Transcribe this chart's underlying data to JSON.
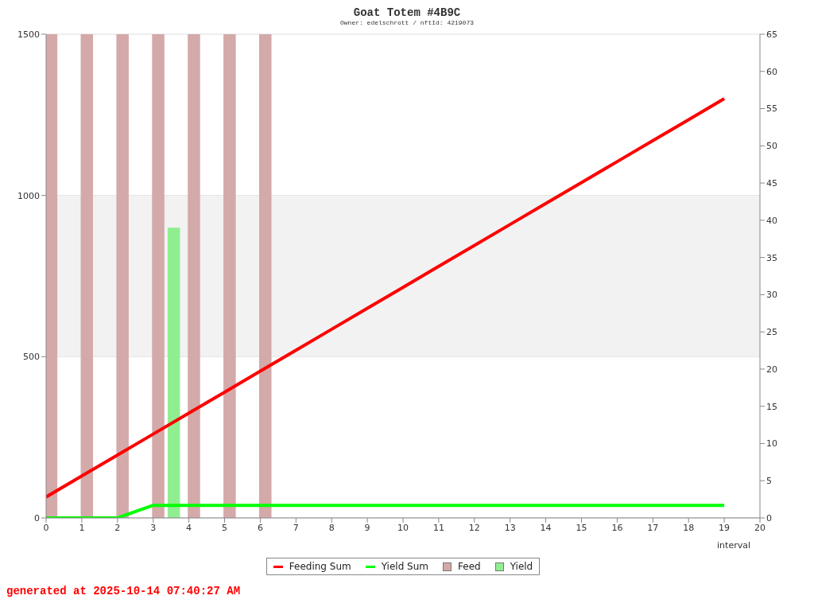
{
  "chart_data": {
    "type": "line",
    "title": "Goat Totem #4B9C",
    "subtitle": "Owner: edelschrott / nftId: 4219073",
    "xlabel": "interval",
    "xlim": [
      0,
      20
    ],
    "xticks": [
      0,
      1,
      2,
      3,
      4,
      5,
      6,
      7,
      8,
      9,
      10,
      11,
      12,
      13,
      14,
      15,
      16,
      17,
      18,
      19,
      20
    ],
    "ylim": [
      0,
      1500
    ],
    "yticks": [
      0,
      500,
      1000,
      1500
    ],
    "y2lim": [
      0,
      65
    ],
    "y2ticks": [
      0,
      5,
      10,
      15,
      20,
      25,
      30,
      35,
      40,
      45,
      50,
      55,
      60,
      65
    ],
    "grid": "y",
    "legend": "bottom",
    "bands": [
      {
        "axis": "y",
        "from": 500,
        "to": 1000,
        "color": "#f2f2f2"
      }
    ],
    "annotations": [
      "generated at 2025-10-14 07:40:27 AM"
    ],
    "series": [
      {
        "name": "Feeding Sum",
        "color": "#ff0000",
        "x": [
          0,
          1,
          2,
          3,
          4,
          5,
          6,
          7,
          8,
          9,
          10,
          11,
          12,
          13,
          14,
          15,
          16,
          17,
          18,
          19
        ],
        "values": [
          65,
          130,
          195,
          260,
          325,
          390,
          455,
          520,
          585,
          650,
          715,
          780,
          845,
          910,
          975,
          1040,
          1105,
          1170,
          1235,
          1300
        ]
      },
      {
        "name": "Yield Sum",
        "color": "#00ff00",
        "x": [
          0,
          1,
          2,
          3,
          4,
          5,
          6,
          7,
          8,
          9,
          10,
          11,
          12,
          13,
          14,
          15,
          16,
          17,
          18,
          19
        ],
        "values": [
          0,
          0,
          0,
          39,
          39,
          39,
          39,
          39,
          39,
          39,
          39,
          39,
          39,
          39,
          39,
          39,
          39,
          39,
          39,
          39
        ]
      },
      {
        "name": "Feed",
        "type": "bar",
        "axis": "y2",
        "color": "#d4a9a9",
        "x": [
          0.18,
          1.18,
          2.18,
          3.18,
          4.18,
          5.18,
          6.18
        ],
        "values": [
          65,
          65,
          65,
          65,
          65,
          65,
          65
        ]
      },
      {
        "name": "Yield",
        "type": "bar",
        "axis": "y2",
        "color": "#90ee90",
        "x": [
          3.55
        ],
        "values": [
          39
        ]
      }
    ]
  }
}
